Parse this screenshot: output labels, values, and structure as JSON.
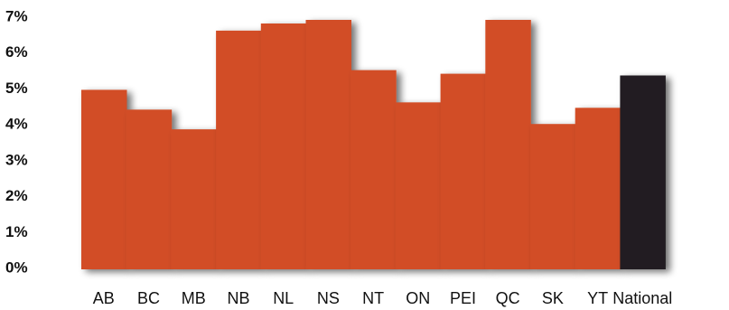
{
  "chart_data": {
    "type": "bar",
    "title": "",
    "xlabel": "",
    "ylabel": "",
    "categories": [
      "AB",
      "BC",
      "MB",
      "NB",
      "NL",
      "NS",
      "NT",
      "ON",
      "PEI",
      "QC",
      "SK",
      "YT",
      "National"
    ],
    "values": [
      5.0,
      4.45,
      3.9,
      6.65,
      6.85,
      6.95,
      5.55,
      4.65,
      5.45,
      6.95,
      4.05,
      4.5,
      5.4
    ],
    "ylim": [
      0,
      7
    ],
    "yticks": [
      0,
      1,
      2,
      3,
      4,
      5,
      6,
      7
    ],
    "ytick_labels": [
      "0%",
      "1%",
      "2%",
      "3%",
      "4%",
      "5%",
      "6%",
      "7%"
    ],
    "grid": false,
    "legend": "none",
    "colors": {
      "bar": "#d24e26",
      "highlight": "#231f20",
      "shadow": "#000000"
    },
    "highlight_category": "National"
  }
}
